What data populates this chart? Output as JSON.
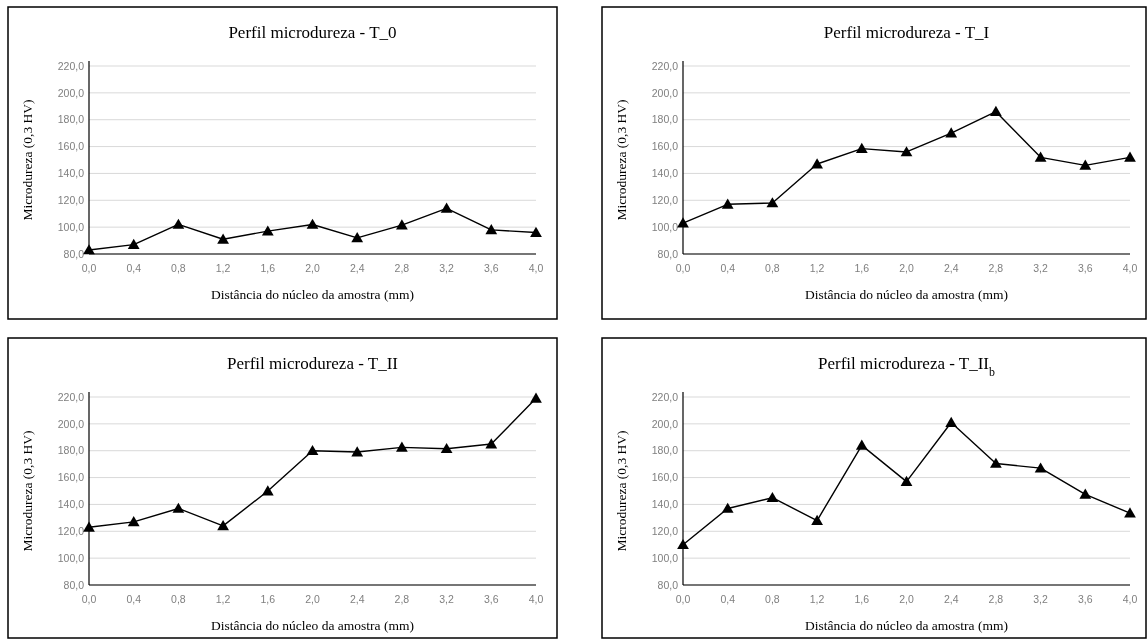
{
  "chart_data": [
    {
      "type": "line",
      "title": "Perfil microdureza - T_0",
      "xlabel": "Distância do núcleo da amostra (mm)",
      "ylabel": "Microdureza (0,3 HV)",
      "x": [
        0,
        0.4,
        0.8,
        1.2,
        1.6,
        2.0,
        2.4,
        2.8,
        3.2,
        3.6,
        4.0
      ],
      "values": [
        83,
        87,
        102,
        91,
        97,
        102,
        92,
        101.5,
        114,
        98,
        96
      ],
      "color": "#000000",
      "xlim": [
        0,
        4
      ],
      "xticks": [
        {
          "value": 0,
          "label": "0,0"
        },
        {
          "value": 0.4,
          "label": "0,4"
        },
        {
          "value": 0.8,
          "label": "0,8"
        },
        {
          "value": 1.2,
          "label": "1,2"
        },
        {
          "value": 1.6,
          "label": "1,6"
        },
        {
          "value": 2.0,
          "label": "2,0"
        },
        {
          "value": 2.4,
          "label": "2,4"
        },
        {
          "value": 2.8,
          "label": "2,8"
        },
        {
          "value": 3.2,
          "label": "3,2"
        },
        {
          "value": 3.6,
          "label": "3,6"
        },
        {
          "value": 4.0,
          "label": "4,0"
        }
      ],
      "ylim": [
        80,
        220
      ],
      "yticks": [
        {
          "value": 80,
          "label": "80,0"
        },
        {
          "value": 100,
          "label": "100,0"
        },
        {
          "value": 120,
          "label": "120,0"
        },
        {
          "value": 140,
          "label": "140,0"
        },
        {
          "value": 160,
          "label": "160,0"
        },
        {
          "value": 180,
          "label": "180,0"
        },
        {
          "value": 200,
          "label": "200,0"
        },
        {
          "value": 220,
          "label": "220,0"
        }
      ],
      "grid": "y",
      "marker": "triangle"
    },
    {
      "type": "line",
      "title": "Perfil microdureza - T_I",
      "xlabel": "Distância do núcleo da amostra (mm)",
      "ylabel": "Microdureza (0,3 HV)",
      "x": [
        0,
        0.4,
        0.8,
        1.2,
        1.6,
        2.0,
        2.4,
        2.8,
        3.2,
        3.6,
        4.0
      ],
      "values": [
        103,
        117,
        118,
        147,
        158.5,
        156,
        170,
        186,
        152,
        146,
        152
      ],
      "color": "#000000",
      "xlim": [
        0,
        4
      ],
      "xticks": [
        {
          "value": 0,
          "label": "0,0"
        },
        {
          "value": 0.4,
          "label": "0,4"
        },
        {
          "value": 0.8,
          "label": "0,8"
        },
        {
          "value": 1.2,
          "label": "1,2"
        },
        {
          "value": 1.6,
          "label": "1,6"
        },
        {
          "value": 2.0,
          "label": "2,0"
        },
        {
          "value": 2.4,
          "label": "2,4"
        },
        {
          "value": 2.8,
          "label": "2,8"
        },
        {
          "value": 3.2,
          "label": "3,2"
        },
        {
          "value": 3.6,
          "label": "3,6"
        },
        {
          "value": 4.0,
          "label": "4,0"
        }
      ],
      "ylim": [
        80,
        220
      ],
      "yticks": [
        {
          "value": 80,
          "label": "80,0"
        },
        {
          "value": 100,
          "label": "100,0"
        },
        {
          "value": 120,
          "label": "120,0"
        },
        {
          "value": 140,
          "label": "140,0"
        },
        {
          "value": 160,
          "label": "160,0"
        },
        {
          "value": 180,
          "label": "180,0"
        },
        {
          "value": 200,
          "label": "200,0"
        },
        {
          "value": 220,
          "label": "220,0"
        }
      ],
      "grid": "y",
      "marker": "triangle"
    },
    {
      "type": "line",
      "title": "Perfil microdureza - T_II",
      "xlabel": "Distância do núcleo da amostra (mm)",
      "ylabel": "Microdureza (0,3 HV)",
      "x": [
        0,
        0.4,
        0.8,
        1.2,
        1.6,
        2.0,
        2.4,
        2.8,
        3.2,
        3.6,
        4.0
      ],
      "values": [
        123,
        127,
        137,
        124,
        150,
        180,
        179,
        182.5,
        181.5,
        185,
        219
      ],
      "color": "#000000",
      "xlim": [
        0,
        4
      ],
      "xticks": [
        {
          "value": 0,
          "label": "0,0"
        },
        {
          "value": 0.4,
          "label": "0,4"
        },
        {
          "value": 0.8,
          "label": "0,8"
        },
        {
          "value": 1.2,
          "label": "1,2"
        },
        {
          "value": 1.6,
          "label": "1,6"
        },
        {
          "value": 2.0,
          "label": "2,0"
        },
        {
          "value": 2.4,
          "label": "2,4"
        },
        {
          "value": 2.8,
          "label": "2,8"
        },
        {
          "value": 3.2,
          "label": "3,2"
        },
        {
          "value": 3.6,
          "label": "3,6"
        },
        {
          "value": 4.0,
          "label": "4,0"
        }
      ],
      "ylim": [
        80,
        220
      ],
      "yticks": [
        {
          "value": 80,
          "label": "80,0"
        },
        {
          "value": 100,
          "label": "100,0"
        },
        {
          "value": 120,
          "label": "120,0"
        },
        {
          "value": 140,
          "label": "140,0"
        },
        {
          "value": 160,
          "label": "160,0"
        },
        {
          "value": 180,
          "label": "180,0"
        },
        {
          "value": 200,
          "label": "200,0"
        },
        {
          "value": 220,
          "label": "220,0"
        }
      ],
      "grid": "y",
      "marker": "triangle"
    },
    {
      "type": "line",
      "title": "Perfil microdureza - T_II$_{b}$",
      "xlabel": "Distância do núcleo da amostra (mm)",
      "ylabel": "Microdureza (0,3 HV)",
      "x": [
        0,
        0.4,
        0.8,
        1.2,
        1.6,
        2.0,
        2.4,
        2.8,
        3.2,
        3.6,
        4.0
      ],
      "values": [
        110,
        137,
        145,
        128,
        184,
        157,
        201,
        170.5,
        167,
        147.5,
        133.5
      ],
      "color": "#000000",
      "xlim": [
        0,
        4
      ],
      "xticks": [
        {
          "value": 0,
          "label": "0,0"
        },
        {
          "value": 0.4,
          "label": "0,4"
        },
        {
          "value": 0.8,
          "label": "0,8"
        },
        {
          "value": 1.2,
          "label": "1,2"
        },
        {
          "value": 1.6,
          "label": "1,6"
        },
        {
          "value": 2.0,
          "label": "2,0"
        },
        {
          "value": 2.4,
          "label": "2,4"
        },
        {
          "value": 2.8,
          "label": "2,8"
        },
        {
          "value": 3.2,
          "label": "3,2"
        },
        {
          "value": 3.6,
          "label": "3,6"
        },
        {
          "value": 4.0,
          "label": "4,0"
        }
      ],
      "ylim": [
        80,
        220
      ],
      "yticks": [
        {
          "value": 80,
          "label": "80,0"
        },
        {
          "value": 100,
          "label": "100,0"
        },
        {
          "value": 120,
          "label": "120,0"
        },
        {
          "value": 140,
          "label": "140,0"
        },
        {
          "value": 160,
          "label": "160,0"
        },
        {
          "value": 180,
          "label": "180,0"
        },
        {
          "value": 200,
          "label": "200,0"
        },
        {
          "value": 220,
          "label": "220,0"
        }
      ],
      "grid": "y",
      "marker": "triangle"
    }
  ]
}
